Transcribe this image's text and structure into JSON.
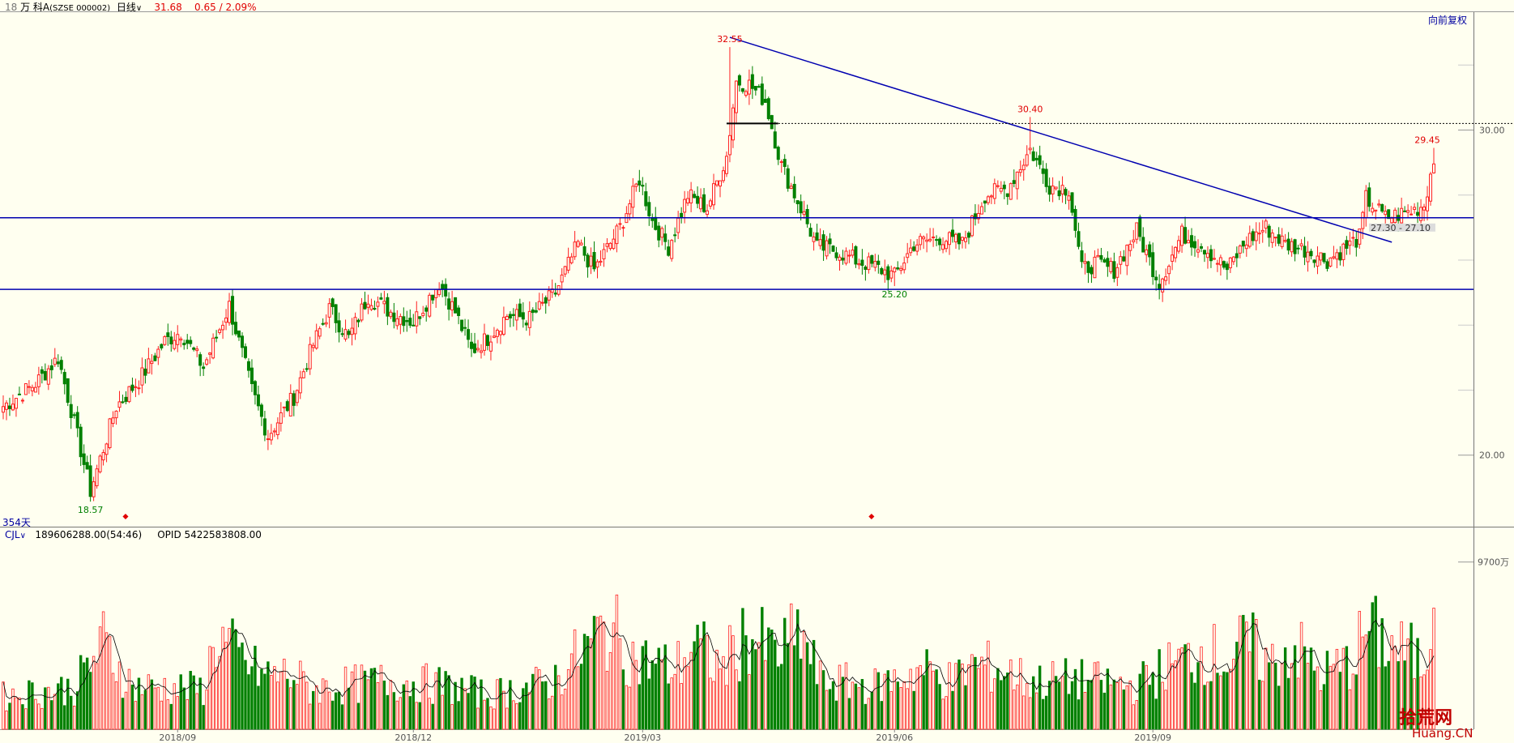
{
  "header": {
    "stock_prefix": "18",
    "stock_name": "万 科A",
    "stock_code": "(SZSE 000002)",
    "period": "日线",
    "price": "31.68",
    "change": "0.65 / 2.09%",
    "adjust_button": "向前复权"
  },
  "price_panel": {
    "days_label": "354天",
    "price_axis_labels": [
      {
        "value": 30,
        "label": "30.00"
      },
      {
        "value": 20,
        "label": "20.00"
      }
    ],
    "annotations": [
      {
        "label": "32.55",
        "color": "#e00000",
        "day": 225,
        "price": 32.55
      },
      {
        "label": "30.40",
        "color": "#e00000",
        "day": 318,
        "price": 30.4
      },
      {
        "label": "29.45",
        "color": "#e00000",
        "day": 441,
        "price": 29.45
      },
      {
        "label": "25.20",
        "color": "#008000",
        "day": 276,
        "price": 25.2
      },
      {
        "label": "18.57",
        "color": "#008000",
        "day": 27,
        "price": 18.57
      }
    ],
    "range_label": "27.30 - 27.10",
    "lines": {
      "resistance_price": 27.3,
      "support_price": 25.1,
      "dotted_price": 30.2,
      "trend_start": {
        "day": 225,
        "price": 32.85
      },
      "trend_end": {
        "day": 430,
        "price": 26.55
      }
    }
  },
  "volume_panel": {
    "indicator": "CJL",
    "indicator_values": "189606288.00(54:46)",
    "opid": "OPID 5422583808.00",
    "unit_label": "9700万",
    "unit_value": 9700
  },
  "x_axis": {
    "labels": [
      {
        "day": 54,
        "label": "2018/09"
      },
      {
        "day": 127,
        "label": "2018/12"
      },
      {
        "day": 198,
        "label": "2019/03"
      },
      {
        "day": 276,
        "label": "2019/06"
      },
      {
        "day": 356,
        "label": "2019/09"
      }
    ]
  },
  "watermark": {
    "main": "拾荒网",
    "sub": "Huang.CN"
  },
  "chart_data": {
    "type": "candlestick",
    "days": 444,
    "ohlc_anchors": [
      [
        0,
        21.5
      ],
      [
        10,
        22.2
      ],
      [
        17,
        23.0
      ],
      [
        22,
        21.0
      ],
      [
        27,
        18.9
      ],
      [
        35,
        21.5
      ],
      [
        42,
        22.3
      ],
      [
        50,
        23.5
      ],
      [
        55,
        23.8
      ],
      [
        62,
        22.7
      ],
      [
        70,
        24.6
      ],
      [
        77,
        22.0
      ],
      [
        82,
        20.6
      ],
      [
        90,
        21.8
      ],
      [
        96,
        23.4
      ],
      [
        101,
        24.5
      ],
      [
        107,
        23.6
      ],
      [
        113,
        24.9
      ],
      [
        120,
        24.4
      ],
      [
        127,
        24.1
      ],
      [
        135,
        25.3
      ],
      [
        140,
        24.4
      ],
      [
        145,
        23.2
      ],
      [
        150,
        23.6
      ],
      [
        156,
        24.3
      ],
      [
        163,
        24.2
      ],
      [
        171,
        25.0
      ],
      [
        178,
        26.5
      ],
      [
        183,
        25.7
      ],
      [
        191,
        27.0
      ],
      [
        197,
        28.5
      ],
      [
        201,
        27.2
      ],
      [
        206,
        26.4
      ],
      [
        212,
        28.0
      ],
      [
        218,
        27.6
      ],
      [
        224,
        29.2
      ],
      [
        227,
        31.5
      ],
      [
        231,
        31.4
      ],
      [
        236,
        30.9
      ],
      [
        241,
        28.9
      ],
      [
        247,
        27.6
      ],
      [
        252,
        26.4
      ],
      [
        258,
        26.3
      ],
      [
        264,
        26.0
      ],
      [
        270,
        25.8
      ],
      [
        276,
        25.5
      ],
      [
        282,
        26.5
      ],
      [
        290,
        26.7
      ],
      [
        297,
        26.5
      ],
      [
        304,
        28.0
      ],
      [
        311,
        28.2
      ],
      [
        318,
        29.4
      ],
      [
        324,
        28.3
      ],
      [
        330,
        28.2
      ],
      [
        334,
        25.7
      ],
      [
        338,
        25.9
      ],
      [
        344,
        25.7
      ],
      [
        351,
        26.9
      ],
      [
        358,
        25.3
      ],
      [
        365,
        26.8
      ],
      [
        372,
        26.4
      ],
      [
        379,
        25.7
      ],
      [
        385,
        26.6
      ],
      [
        391,
        27.0
      ],
      [
        397,
        26.5
      ],
      [
        404,
        26.3
      ],
      [
        410,
        26.0
      ],
      [
        416,
        26.4
      ],
      [
        420,
        26.7
      ],
      [
        422,
        27.9
      ],
      [
        428,
        27.3
      ],
      [
        436,
        27.5
      ],
      [
        440,
        27.7
      ],
      [
        443,
        29.1
      ]
    ],
    "candle_spikes": [
      [
        27,
        18.57,
        "low"
      ],
      [
        225,
        32.55,
        "high"
      ],
      [
        276,
        25.2,
        "low"
      ],
      [
        318,
        30.4,
        "high"
      ],
      [
        443,
        29.45,
        "high"
      ]
    ],
    "volume_anchors": [
      [
        0,
        2300
      ],
      [
        10,
        2600
      ],
      [
        22,
        2900
      ],
      [
        31,
        6000
      ],
      [
        40,
        3000
      ],
      [
        62,
        2800
      ],
      [
        66,
        6500
      ],
      [
        72,
        5200
      ],
      [
        80,
        3800
      ],
      [
        90,
        3800
      ],
      [
        95,
        2800
      ],
      [
        120,
        3400
      ],
      [
        135,
        3100
      ],
      [
        150,
        2400
      ],
      [
        170,
        3300
      ],
      [
        184,
        6500
      ],
      [
        188,
        7100
      ],
      [
        195,
        5000
      ],
      [
        208,
        4200
      ],
      [
        214,
        6000
      ],
      [
        222,
        4200
      ],
      [
        230,
        6600
      ],
      [
        240,
        5200
      ],
      [
        247,
        6800
      ],
      [
        253,
        3400
      ],
      [
        270,
        3000
      ],
      [
        285,
        4200
      ],
      [
        294,
        3300
      ],
      [
        300,
        4500
      ],
      [
        309,
        4200
      ],
      [
        318,
        3300
      ],
      [
        332,
        3500
      ],
      [
        350,
        3000
      ],
      [
        362,
        4500
      ],
      [
        372,
        5500
      ],
      [
        380,
        4800
      ],
      [
        385,
        6200
      ],
      [
        392,
        4500
      ],
      [
        400,
        5800
      ],
      [
        408,
        3800
      ],
      [
        418,
        4800
      ],
      [
        422,
        7000
      ],
      [
        430,
        5800
      ],
      [
        436,
        5200
      ],
      [
        440,
        4500
      ],
      [
        442,
        7800
      ],
      [
        443,
        10800
      ]
    ],
    "y_price_range": [
      17.8,
      33.6
    ],
    "y_volume_max": 11700
  }
}
